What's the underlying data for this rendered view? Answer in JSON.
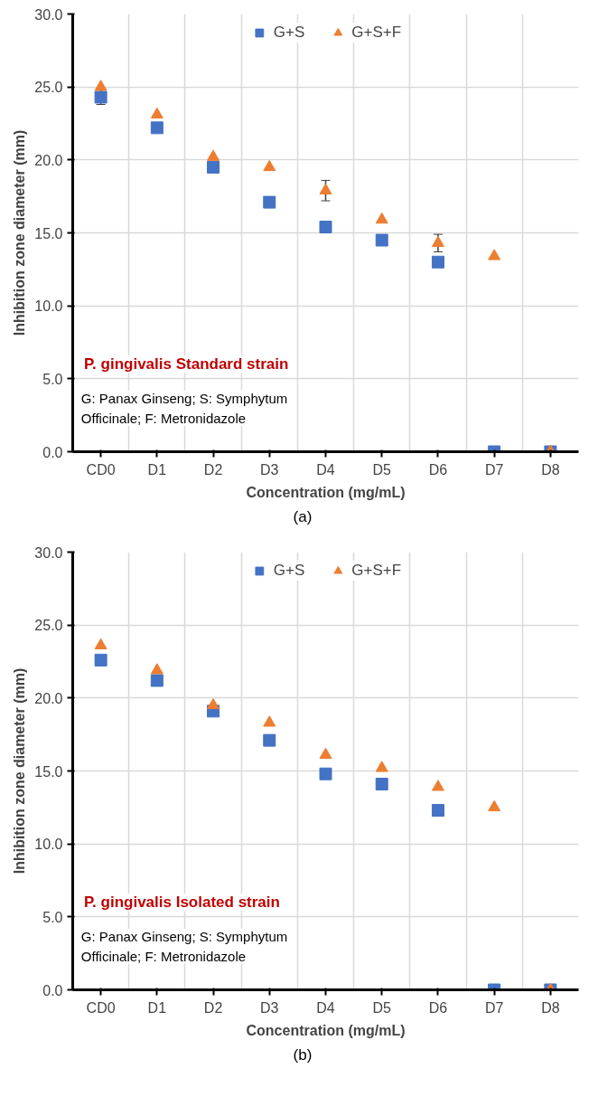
{
  "chart_data": [
    {
      "type": "scatter",
      "categories": [
        "CD0",
        "D1",
        "D2",
        "D3",
        "D4",
        "D5",
        "D6",
        "D7",
        "D8"
      ],
      "xlabel": "Concentration (mg/mL)",
      "ylabel": "Inhibition zone diameter (mm)",
      "ylim": [
        0,
        30
      ],
      "yticks": [
        {
          "value": 0,
          "label": "0.0"
        },
        {
          "value": 5,
          "label": "5.0"
        },
        {
          "value": 10,
          "label": "10.0"
        },
        {
          "value": 15,
          "label": "15.0"
        },
        {
          "value": 20,
          "label": "20.0"
        },
        {
          "value": 25,
          "label": "25.0"
        },
        {
          "value": 30,
          "label": "30.0"
        }
      ],
      "grid": true,
      "legend": "top",
      "annotations": [
        "P. gingivalis Standard strain",
        "G: Panax Ginseng; S: Symphytum Officinale; F: Metronidazole",
        "(a)"
      ],
      "series": [
        {
          "name": "G+S",
          "color": "#4472c4",
          "marker": "square",
          "values": [
            24.3,
            22.2,
            19.5,
            17.1,
            15.4,
            14.5,
            13.0,
            0,
            0
          ],
          "errors": [
            0.5,
            null,
            null,
            null,
            null,
            null,
            null,
            null,
            null
          ]
        },
        {
          "name": "G+S+F",
          "color": "#ed7d31",
          "marker": "triangle",
          "values": [
            25.0,
            23.1,
            20.2,
            19.5,
            17.9,
            15.9,
            14.3,
            13.4,
            0
          ],
          "errors": [
            null,
            null,
            null,
            null,
            0.7,
            null,
            0.6,
            null,
            null
          ]
        }
      ]
    },
    {
      "type": "scatter",
      "categories": [
        "CD0",
        "D1",
        "D2",
        "D3",
        "D4",
        "D5",
        "D6",
        "D7",
        "D8"
      ],
      "xlabel": "Concentration (mg/mL)",
      "ylabel": "Inhibition zone diameter (mm)",
      "ylim": [
        0,
        30
      ],
      "yticks": [
        {
          "value": 0,
          "label": "0.0"
        },
        {
          "value": 5,
          "label": "5.0"
        },
        {
          "value": 10,
          "label": "10.0"
        },
        {
          "value": 15,
          "label": "15.0"
        },
        {
          "value": 20,
          "label": "20.0"
        },
        {
          "value": 25,
          "label": "25.0"
        },
        {
          "value": 30,
          "label": "30.0"
        }
      ],
      "grid": true,
      "legend": "top",
      "annotations": [
        "P. gingivalis Isolated strain",
        "G: Panax Ginseng; S: Symphytum Officinale; F: Metronidazole",
        "(b)"
      ],
      "series": [
        {
          "name": "G+S",
          "color": "#4472c4",
          "marker": "square",
          "values": [
            22.6,
            21.2,
            19.1,
            17.1,
            14.8,
            14.1,
            12.3,
            0,
            0
          ]
        },
        {
          "name": "G+S+F",
          "color": "#ed7d31",
          "marker": "triangle",
          "values": [
            23.6,
            21.9,
            19.5,
            18.3,
            16.1,
            15.2,
            13.9,
            12.5,
            0
          ]
        }
      ]
    }
  ]
}
